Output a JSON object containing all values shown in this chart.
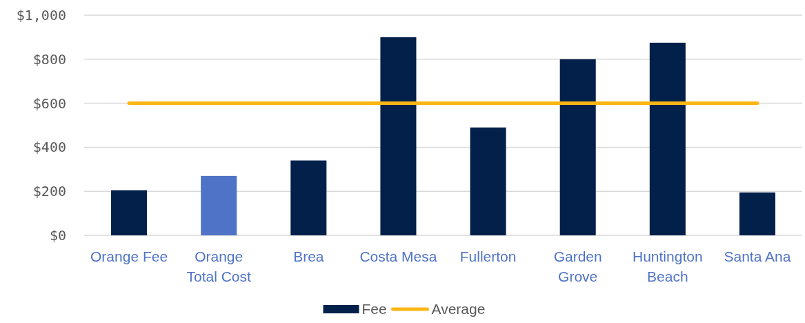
{
  "chart_data": {
    "type": "bar",
    "categories": [
      "Orange Fee",
      "Orange Total Cost",
      "Brea",
      "Costa Mesa",
      "Fullerton",
      "Garden Grove",
      "Huntington Beach",
      "Santa Ana"
    ],
    "series": [
      {
        "name": "Fee",
        "color": "#03204a",
        "colors": [
          "#03204a",
          "#4f73c6",
          "#03204a",
          "#03204a",
          "#03204a",
          "#03204a",
          "#03204a",
          "#03204a"
        ],
        "values": [
          205,
          270,
          340,
          900,
          490,
          800,
          875,
          195
        ]
      },
      {
        "name": "Average",
        "type": "line",
        "color": "#fbb614",
        "values": [
          600,
          600,
          600,
          600,
          600,
          600,
          600,
          600
        ]
      }
    ],
    "ylim": [
      0,
      1000
    ],
    "yticks": [
      {
        "value": 0,
        "label": "$0"
      },
      {
        "value": 200,
        "label": "$200"
      },
      {
        "value": 400,
        "label": "$400"
      },
      {
        "value": 600,
        "label": "$600"
      },
      {
        "value": 800,
        "label": "$800"
      },
      {
        "value": 1000,
        "label": "$1,000"
      }
    ],
    "grid": "y",
    "legend": "bottom"
  }
}
